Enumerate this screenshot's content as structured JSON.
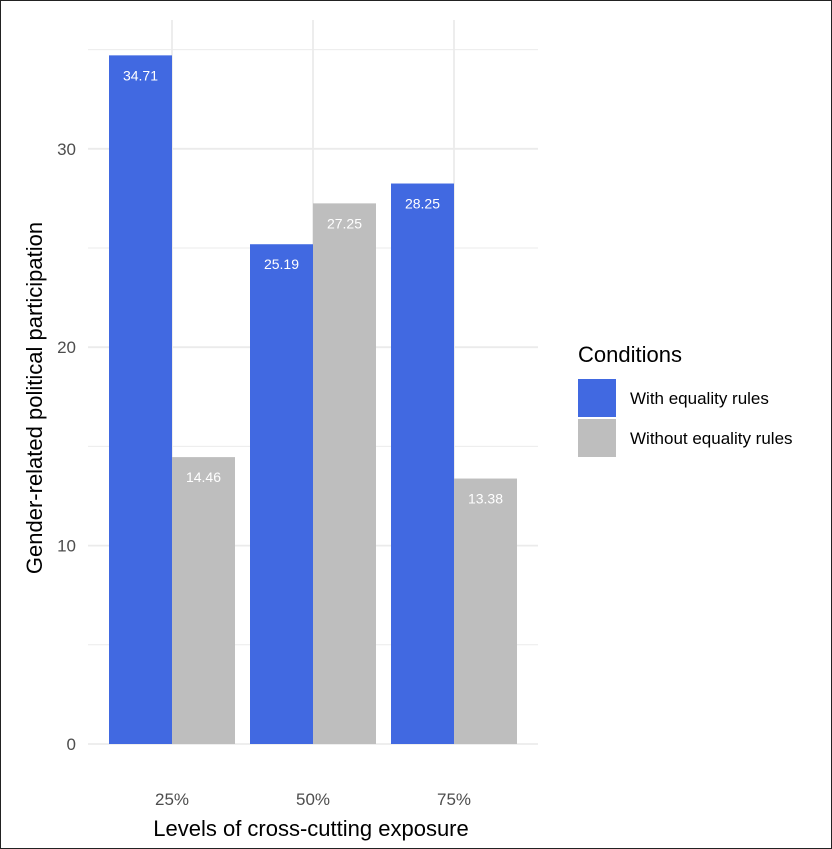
{
  "chart_data": {
    "type": "bar",
    "categories": [
      "25%",
      "50%",
      "75%"
    ],
    "series": [
      {
        "name": "With equality rules",
        "values": [
          34.71,
          25.19,
          28.25
        ],
        "color": "#4169e1"
      },
      {
        "name": "Without equality rules",
        "values": [
          14.46,
          27.25,
          13.38
        ],
        "color": "#bebebe"
      }
    ],
    "value_labels": [
      [
        "34.71",
        "25.19",
        "28.25"
      ],
      [
        "14.46",
        "27.25",
        "13.38"
      ]
    ],
    "xlabel": "Levels of cross-cutting exposure",
    "ylabel": "Gender-related political participation",
    "ylim": [
      0,
      35.5
    ],
    "yticks": [
      0,
      10,
      20,
      30
    ],
    "ytick_labels": [
      "0",
      "10",
      "20",
      "30"
    ],
    "legend_title": "Conditions",
    "legend_position": "right",
    "grid": true,
    "grid_color": "#ebebeb"
  }
}
